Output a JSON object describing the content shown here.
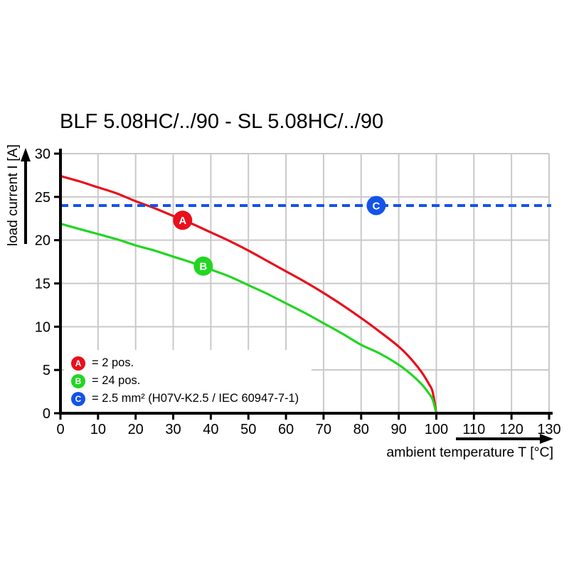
{
  "chart_data": {
    "type": "line",
    "title": "BLF 5.08HC/../90 - SL 5.08HC/../90",
    "xlabel": "ambient temperature T [°C]",
    "ylabel": "load current I [A]",
    "xlim": [
      0,
      130
    ],
    "ylim": [
      0,
      30
    ],
    "x_ticks": [
      0,
      10,
      20,
      30,
      40,
      50,
      60,
      70,
      80,
      90,
      100,
      110,
      120,
      130
    ],
    "y_ticks": [
      0,
      5,
      10,
      15,
      20,
      25,
      30
    ],
    "grid": true,
    "legend_position": "bottom-left",
    "series": [
      {
        "name": "A",
        "label": "= 2 pos.",
        "color": "#e8101c",
        "style": "solid",
        "points": [
          [
            0,
            27.4
          ],
          [
            5,
            26.8
          ],
          [
            10,
            26.1
          ],
          [
            15,
            25.4
          ],
          [
            20,
            24.5
          ],
          [
            25,
            23.7
          ],
          [
            30,
            22.8
          ],
          [
            35,
            21.9
          ],
          [
            40,
            20.9
          ],
          [
            45,
            19.9
          ],
          [
            50,
            18.8
          ],
          [
            55,
            17.6
          ],
          [
            60,
            16.4
          ],
          [
            65,
            15.2
          ],
          [
            70,
            13.9
          ],
          [
            75,
            12.5
          ],
          [
            80,
            11.0
          ],
          [
            85,
            9.4
          ],
          [
            90,
            7.7
          ],
          [
            93,
            6.4
          ],
          [
            96,
            4.8
          ],
          [
            98,
            3.4
          ],
          [
            99,
            2.5
          ],
          [
            100,
            0
          ]
        ]
      },
      {
        "name": "B",
        "label": "= 24 pos.",
        "color": "#22d622",
        "style": "solid",
        "points": [
          [
            0,
            21.9
          ],
          [
            5,
            21.3
          ],
          [
            10,
            20.7
          ],
          [
            15,
            20.1
          ],
          [
            20,
            19.4
          ],
          [
            25,
            18.8
          ],
          [
            30,
            18.1
          ],
          [
            35,
            17.4
          ],
          [
            40,
            16.6
          ],
          [
            45,
            15.8
          ],
          [
            50,
            14.8
          ],
          [
            55,
            13.8
          ],
          [
            60,
            12.7
          ],
          [
            65,
            11.6
          ],
          [
            70,
            10.4
          ],
          [
            75,
            9.2
          ],
          [
            80,
            7.9
          ],
          [
            85,
            6.9
          ],
          [
            90,
            5.6
          ],
          [
            93,
            4.6
          ],
          [
            96,
            3.4
          ],
          [
            98,
            2.3
          ],
          [
            99,
            1.6
          ],
          [
            100,
            0
          ]
        ]
      },
      {
        "name": "C",
        "label": "= 2.5 mm² (H07V-K2.5 / IEC 60947-7-1)",
        "color": "#1353e8",
        "style": "dashed-hline",
        "value": 24
      }
    ],
    "markers": [
      {
        "key": "A",
        "t": 32.5,
        "i": 22.3,
        "color": "#e8101c"
      },
      {
        "key": "B",
        "t": 38.0,
        "i": 17.0,
        "color": "#22d622"
      },
      {
        "key": "C",
        "t": 84.0,
        "i": 24.0,
        "color": "#1353e8"
      }
    ]
  },
  "colors": {
    "grid": "#c9c9c9",
    "axis": "#000000",
    "background": "#ffffff"
  }
}
